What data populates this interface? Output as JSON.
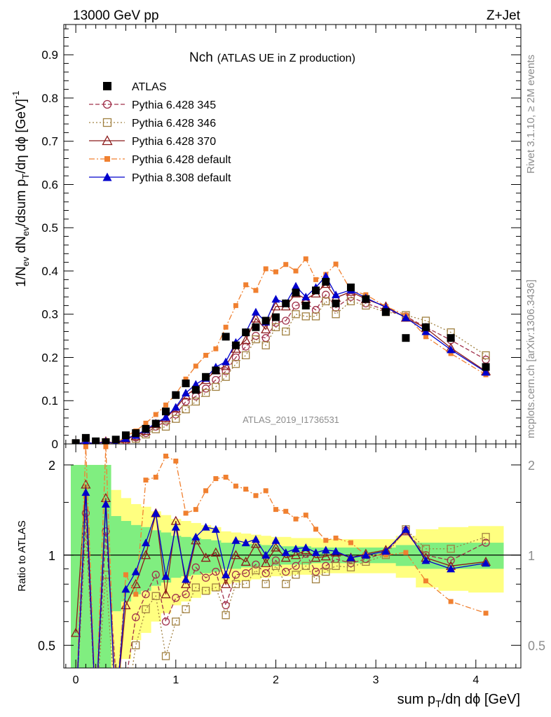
{
  "header": {
    "left": "13000 GeV pp",
    "right": "Z+Jet"
  },
  "side": {
    "rivet": "Rivet 3.1.10, ≥ 2M events",
    "mcplots": "mcplots.cern.ch [arXiv:1306.3436]"
  },
  "chart_data": {
    "type": "line",
    "title_main": "Nch",
    "title_sub": "(ATLAS UE in Z production)",
    "analysis": "ATLAS_2019_I1736531",
    "ylabel": "1/N_ev dN_ev/dsum p_T/dη dϕ [GeV]^-1",
    "ratio_ylabel": "Ratio to ATLAS",
    "xlabel": "sum p_T/dη dϕ [GeV]",
    "xlim": [
      -0.12,
      4.45
    ],
    "ylim": [
      0,
      0.97
    ],
    "ratio_ylim": [
      0.42,
      2.35
    ],
    "ratio_scale": "log",
    "x_ticks": [
      "0",
      "1",
      "2",
      "3",
      "4"
    ],
    "y_ticks": [
      "0",
      "0.1",
      "0.2",
      "0.3",
      "0.4",
      "0.5",
      "0.6",
      "0.7",
      "0.8",
      "0.9"
    ],
    "ratio_ticks": [
      "0.5",
      "1",
      "2"
    ],
    "legend_position": "top-left",
    "x": [
      0.0,
      0.1,
      0.2,
      0.3,
      0.4,
      0.5,
      0.6,
      0.7,
      0.8,
      0.9,
      1.0,
      1.1,
      1.2,
      1.3,
      1.4,
      1.5,
      1.6,
      1.7,
      1.8,
      1.9,
      2.0,
      2.1,
      2.2,
      2.3,
      2.4,
      2.5,
      2.6,
      2.75,
      2.9,
      3.1,
      3.3,
      3.5,
      3.75,
      4.1
    ],
    "series": [
      {
        "name": "ATLAS",
        "style": "data",
        "color": "#000000",
        "values": [
          0.002,
          0.014,
          0.006,
          0.004,
          0.01,
          0.02,
          0.025,
          0.035,
          0.047,
          0.075,
          0.113,
          0.14,
          0.125,
          0.155,
          0.17,
          0.248,
          0.228,
          0.258,
          0.27,
          0.285,
          0.293,
          0.325,
          0.35,
          0.32,
          0.355,
          0.375,
          0.325,
          0.362,
          0.335,
          0.305,
          0.245,
          0.27,
          0.245,
          0.178
        ],
        "ratio_band_inner": [
          1.0,
          1.0,
          1.0,
          1.0,
          0.35,
          0.3,
          0.26,
          0.24,
          0.21,
          0.19,
          0.16,
          0.15,
          0.14,
          0.13,
          0.12,
          0.1,
          0.1,
          0.09,
          0.09,
          0.08,
          0.08,
          0.07,
          0.07,
          0.07,
          0.06,
          0.06,
          0.06,
          0.06,
          0.06,
          0.06,
          0.08,
          0.1,
          0.1,
          0.1
        ],
        "ratio_band_outer": [
          1.0,
          1.0,
          1.0,
          1.0,
          0.65,
          0.55,
          0.48,
          0.45,
          0.4,
          0.36,
          0.32,
          0.3,
          0.28,
          0.26,
          0.24,
          0.2,
          0.19,
          0.18,
          0.17,
          0.16,
          0.15,
          0.15,
          0.14,
          0.14,
          0.14,
          0.13,
          0.13,
          0.13,
          0.13,
          0.13,
          0.16,
          0.22,
          0.24,
          0.25
        ]
      },
      {
        "name": "Pythia 6.428 345",
        "style": "dashed",
        "marker": "circle-open",
        "color": "#a0304a",
        "values": [
          0.0,
          0.004,
          0.0,
          0.005,
          0.0,
          0.008,
          0.015,
          0.025,
          0.04,
          0.052,
          0.068,
          0.098,
          0.11,
          0.128,
          0.148,
          0.168,
          0.2,
          0.225,
          0.25,
          0.245,
          0.28,
          0.285,
          0.32,
          0.325,
          0.31,
          0.345,
          0.315,
          0.34,
          0.325,
          0.31,
          0.295,
          0.27,
          0.24,
          0.195
        ],
        "ratios": [
          0.3,
          1.38,
          0.3,
          1.2,
          0.4,
          0.38,
          0.62,
          0.74,
          0.86,
          0.6,
          0.72,
          0.74,
          0.91,
          0.84,
          0.88,
          0.68,
          0.86,
          0.87,
          0.93,
          0.87,
          0.96,
          0.88,
          0.92,
          1.01,
          0.88,
          0.92,
          0.97,
          0.94,
          0.97,
          1.02,
          1.21,
          1.0,
          0.96,
          1.1
        ]
      },
      {
        "name": "Pythia 6.428 346",
        "style": "dotted",
        "marker": "square-open",
        "color": "#a08040",
        "values": [
          0.0,
          0.004,
          0.0,
          0.004,
          0.0,
          0.006,
          0.012,
          0.022,
          0.034,
          0.04,
          0.058,
          0.08,
          0.098,
          0.118,
          0.132,
          0.155,
          0.185,
          0.205,
          0.242,
          0.228,
          0.27,
          0.26,
          0.3,
          0.295,
          0.295,
          0.33,
          0.3,
          0.33,
          0.32,
          0.305,
          0.298,
          0.285,
          0.258,
          0.205
        ],
        "ratios": [
          0.3,
          1.2,
          0.3,
          0.86,
          0.3,
          0.3,
          0.5,
          0.66,
          0.73,
          0.46,
          0.6,
          0.66,
          0.78,
          0.76,
          0.78,
          0.63,
          0.8,
          0.8,
          0.89,
          0.8,
          0.92,
          0.8,
          0.86,
          0.92,
          0.83,
          0.88,
          0.92,
          0.91,
          0.95,
          1.0,
          1.22,
          1.05,
          1.05,
          1.15
        ]
      },
      {
        "name": "Pythia 6.428 370",
        "style": "solid",
        "marker": "triangle-open",
        "color": "#8b1a1a",
        "values": [
          0.0,
          0.004,
          0.0,
          0.006,
          0.0,
          0.012,
          0.018,
          0.03,
          0.046,
          0.06,
          0.082,
          0.112,
          0.128,
          0.148,
          0.17,
          0.18,
          0.22,
          0.24,
          0.29,
          0.265,
          0.318,
          0.318,
          0.348,
          0.335,
          0.348,
          0.37,
          0.338,
          0.352,
          0.335,
          0.318,
          0.292,
          0.268,
          0.222,
          0.168
        ],
        "ratios": [
          0.55,
          1.72,
          0.3,
          1.55,
          0.3,
          0.68,
          0.8,
          1.0,
          1.38,
          0.74,
          1.3,
          0.8,
          1.12,
          0.98,
          1.02,
          0.8,
          1.0,
          0.95,
          1.09,
          0.94,
          1.06,
          0.98,
          1.0,
          1.04,
          0.98,
          0.99,
          1.02,
          0.98,
          1.01,
          1.04,
          1.2,
          0.98,
          0.92,
          0.95
        ]
      },
      {
        "name": "Pythia 6.428 default",
        "style": "dashdot",
        "marker": "square-filled",
        "color": "#f08030",
        "values": [
          0.0,
          0.004,
          0.0,
          0.008,
          0.0,
          0.018,
          0.03,
          0.048,
          0.068,
          0.09,
          0.115,
          0.15,
          0.18,
          0.205,
          0.22,
          0.27,
          0.32,
          0.368,
          0.355,
          0.405,
          0.398,
          0.415,
          0.4,
          0.428,
          0.38,
          0.392,
          0.416,
          0.355,
          0.345,
          0.318,
          0.298,
          0.248,
          0.209,
          0.16
        ],
        "ratios": [
          0.3,
          2.3,
          0.3,
          2.3,
          0.3,
          0.86,
          0.74,
          1.78,
          1.82,
          2.14,
          2.06,
          1.38,
          1.42,
          1.64,
          1.8,
          1.82,
          1.7,
          1.66,
          1.58,
          1.64,
          1.42,
          1.4,
          1.32,
          1.36,
          1.22,
          1.12,
          1.14,
          1.1,
          1.0,
          1.0,
          1.02,
          0.82,
          0.7,
          0.64
        ]
      },
      {
        "name": "Pythia 8.308 default",
        "style": "solid",
        "marker": "triangle-filled",
        "color": "#0000cc",
        "values": [
          0.0,
          0.004,
          0.0,
          0.006,
          0.0,
          0.013,
          0.02,
          0.033,
          0.048,
          0.062,
          0.085,
          0.118,
          0.138,
          0.152,
          0.178,
          0.19,
          0.235,
          0.258,
          0.305,
          0.282,
          0.335,
          0.325,
          0.365,
          0.34,
          0.362,
          0.388,
          0.345,
          0.356,
          0.338,
          0.316,
          0.292,
          0.26,
          0.218,
          0.166
        ],
        "ratios": [
          0.3,
          1.62,
          0.3,
          1.48,
          0.3,
          0.77,
          0.88,
          1.1,
          1.38,
          0.85,
          1.24,
          0.83,
          1.15,
          1.24,
          1.22,
          0.86,
          1.12,
          1.1,
          1.13,
          1.0,
          1.12,
          1.02,
          1.05,
          1.06,
          1.02,
          1.04,
          1.03,
          0.98,
          1.0,
          1.03,
          1.22,
          0.96,
          0.9,
          0.94
        ]
      }
    ]
  }
}
